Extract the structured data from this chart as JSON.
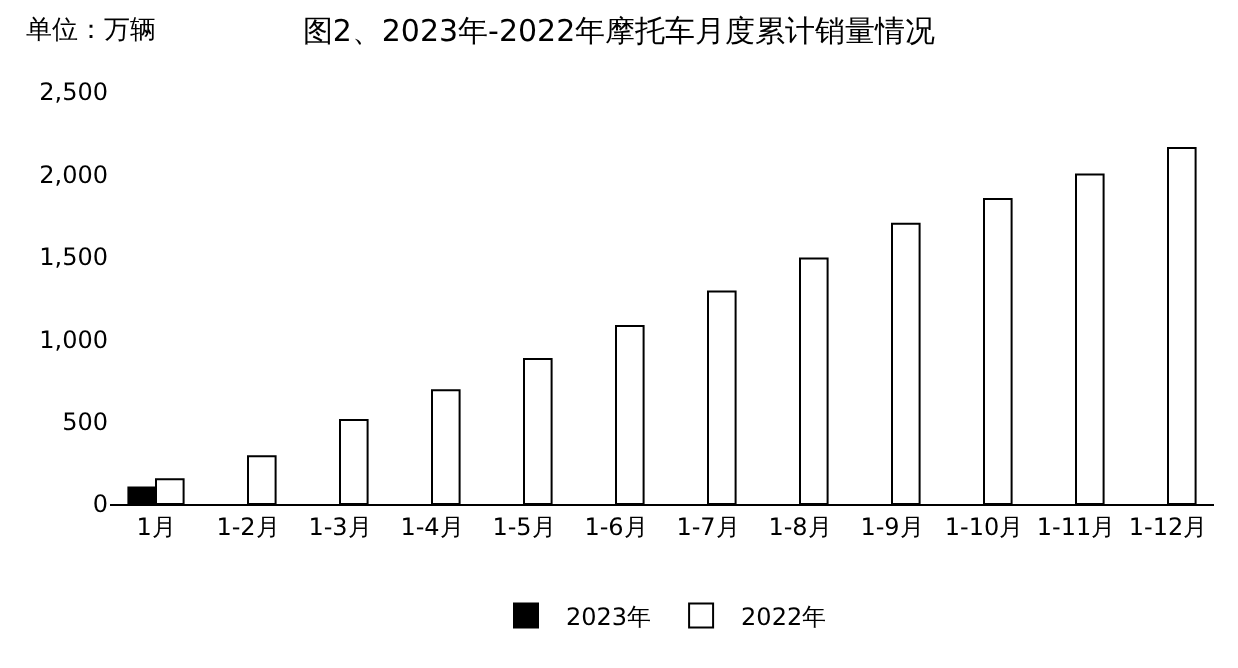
{
  "chart_data": {
    "type": "bar",
    "title": "图2、2023年-2022年摩托车月度累计销量情况",
    "annotations": [
      "单位：万辆"
    ],
    "categories": [
      "1月",
      "1-2月",
      "1-3月",
      "1-4月",
      "1-5月",
      "1-6月",
      "1-7月",
      "1-8月",
      "1-9月",
      "1-10月",
      "1-11月",
      "1-12月"
    ],
    "series": [
      {
        "name": "2023年",
        "color": "#000000",
        "values": [
          100,
          null,
          null,
          null,
          null,
          null,
          null,
          null,
          null,
          null,
          null,
          null
        ]
      },
      {
        "name": "2022年",
        "color": "#ffffff",
        "values": [
          150,
          290,
          510,
          690,
          880,
          1080,
          1290,
          1490,
          1700,
          1850,
          2000,
          2160
        ]
      }
    ],
    "ylim": [
      0,
      2500
    ],
    "yticks": [
      {
        "value": 0,
        "label": "0"
      },
      {
        "value": 500,
        "label": "500"
      },
      {
        "value": 1000,
        "label": "1,000"
      },
      {
        "value": 1500,
        "label": "1,500"
      },
      {
        "value": 2000,
        "label": "2,000"
      },
      {
        "value": 2500,
        "label": "2,500"
      }
    ],
    "grid": false,
    "legend": "bottom"
  }
}
